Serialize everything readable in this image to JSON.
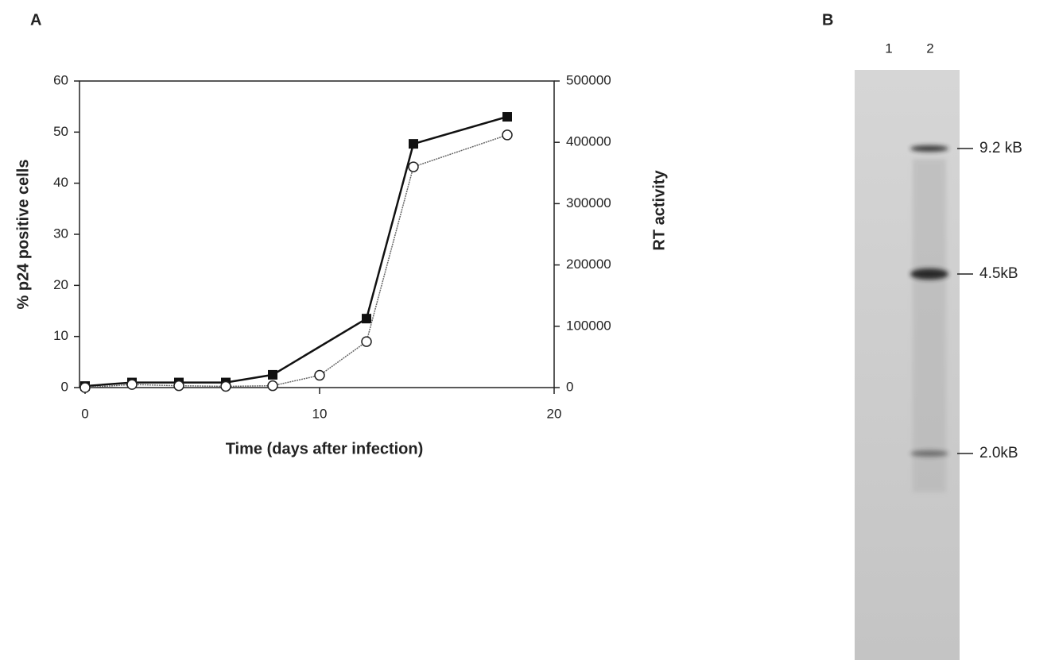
{
  "chart_data": {
    "type": "line",
    "panel_label": "A",
    "x_label": "Time (days after infection)",
    "y_label": "% p24 positive cells",
    "y2_label": "RT activity",
    "xlim": [
      0,
      20
    ],
    "xticks": [
      0,
      10,
      20
    ],
    "ylim": [
      0,
      60
    ],
    "yticks": [
      0,
      10,
      20,
      30,
      40,
      50,
      60
    ],
    "y2lim": [
      0,
      500000
    ],
    "y2ticks": [
      0,
      100000,
      200000,
      300000,
      400000,
      500000
    ],
    "series": [
      {
        "color": "#111111",
        "marker": "square",
        "x": [
          0,
          2,
          4,
          6,
          8,
          12,
          14,
          18
        ],
        "values": [
          0.3,
          1,
          1,
          1,
          2.5,
          13.5,
          47.7,
          53
        ]
      },
      {
        "color": "#666666",
        "marker": "circle",
        "axis": "y2",
        "x": [
          0,
          2,
          4,
          6,
          8,
          10,
          12,
          14,
          18
        ],
        "values": [
          0,
          5000,
          3000,
          2000,
          3000,
          20000,
          75000,
          360000,
          412000
        ]
      }
    ]
  },
  "gel": {
    "panel_label": "B",
    "lanes": [
      "1",
      "2"
    ],
    "markers": [
      "9.2 kB",
      "4.5kB",
      "2.0kB"
    ]
  }
}
